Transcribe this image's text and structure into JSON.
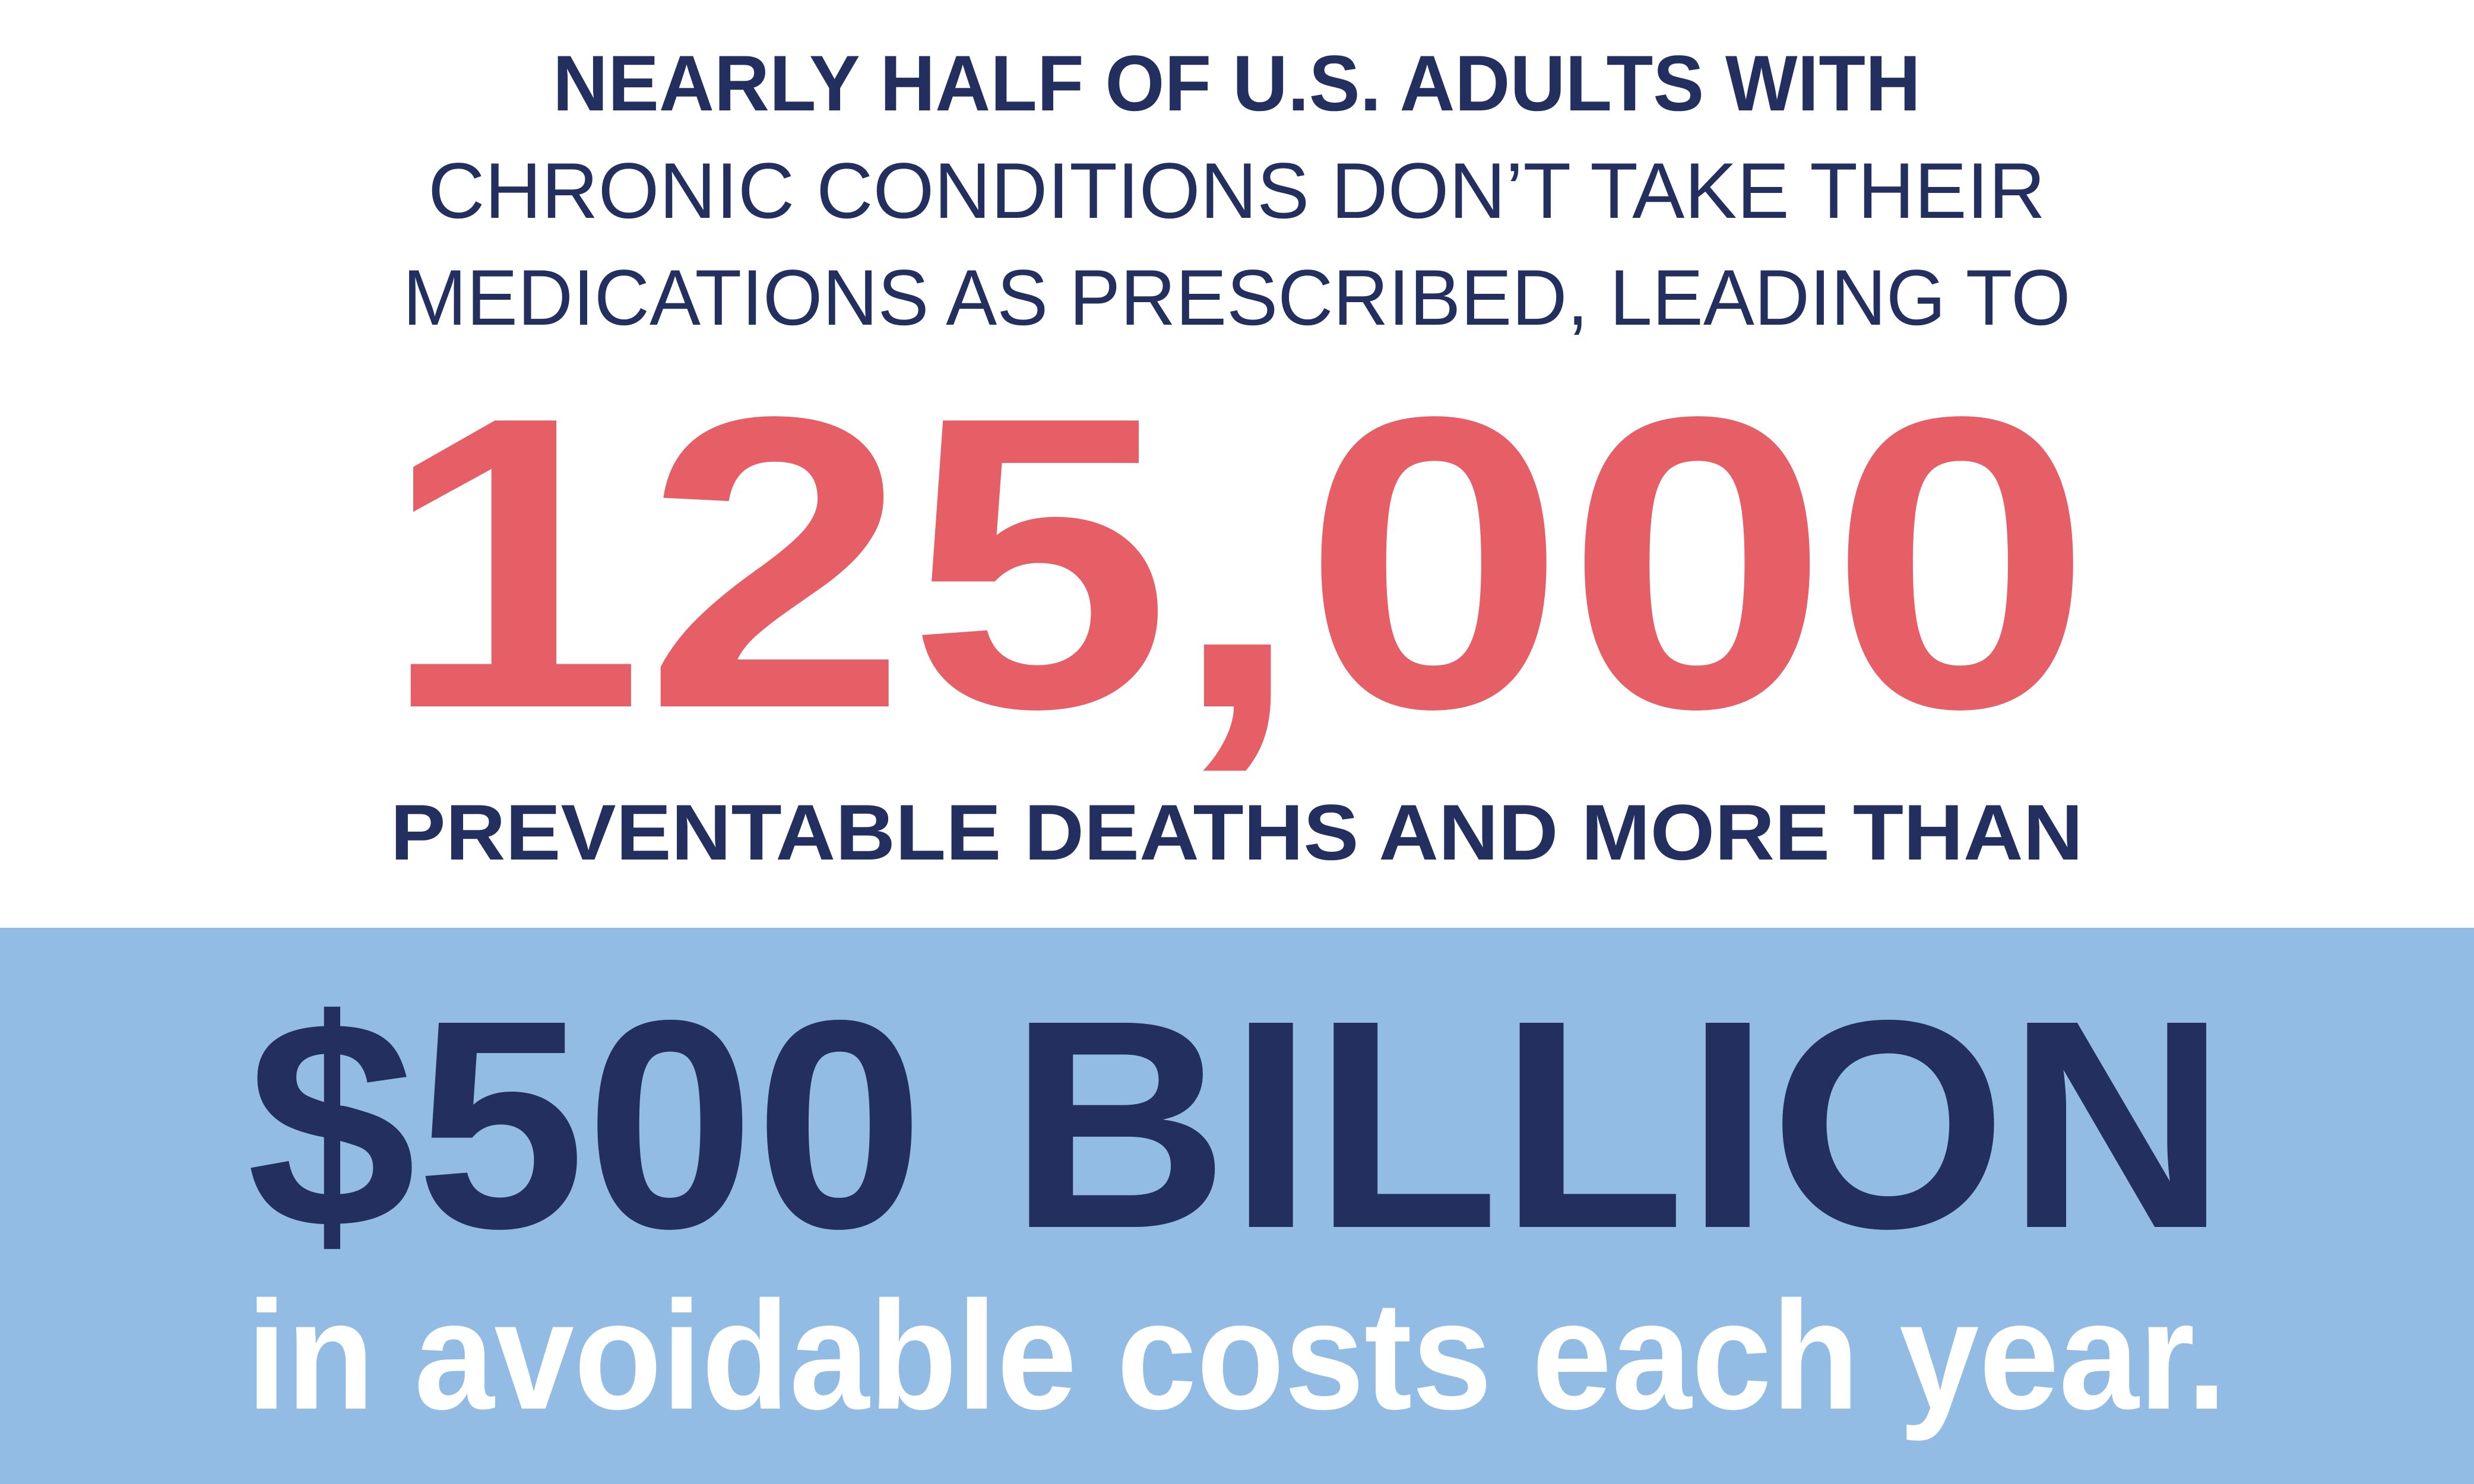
{
  "headline": {
    "lines": [
      "NEARLY HALF OF U.S. ADULTS WITH",
      "CHRONIC CONDITIONS DON’T TAKE THEIR",
      "MEDICATIONS AS PRESCRIBED, LEADING TO"
    ]
  },
  "deaths_figure": "125,000",
  "deaths_text": "PREVENTABLE DEATHS AND MORE THAN",
  "cost_figure": "$500 BILLION",
  "cost_text": "in avoidable costs each year."
}
